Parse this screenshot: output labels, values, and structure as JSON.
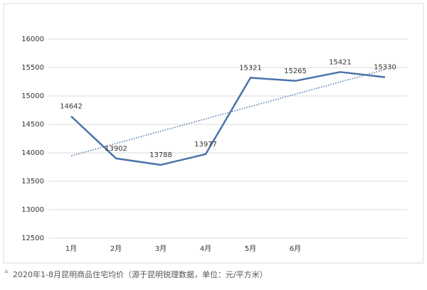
{
  "chart_data": {
    "type": "line",
    "categories": [
      "1月",
      "2月",
      "3月",
      "4月",
      "5月",
      "6月",
      null,
      null
    ],
    "series": [
      {
        "name": "均价",
        "color": "#4a73a8",
        "values": [
          14642,
          13902,
          13788,
          13977,
          15321,
          15265,
          15421,
          15330
        ]
      }
    ],
    "ylim": [
      12500,
      16000
    ],
    "yticks": [
      12500,
      13000,
      13500,
      14000,
      14500,
      15000,
      15500,
      16000
    ],
    "grid": true,
    "trendline": true,
    "data_labels": true
  },
  "caption": "2020年1-8月昆明商品住宅均价（源于昆明锐理数据，单位：元/平方米）"
}
